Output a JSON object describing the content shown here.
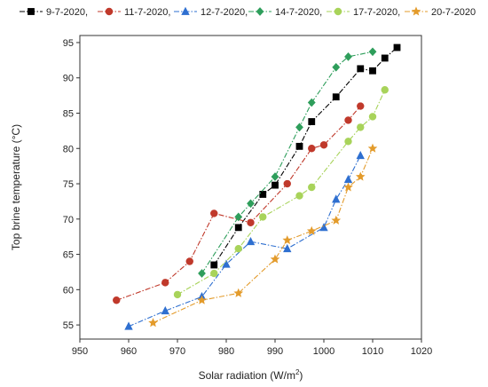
{
  "chart_data": {
    "type": "line",
    "xlabel": "Solar radiation (W/m",
    "xlabel_sup": "2",
    "xlabel_end": ")",
    "ylabel": "Top brine temperature (°C)",
    "xlim": [
      950,
      1020
    ],
    "ylim": [
      53,
      96
    ],
    "xticks": [
      950,
      960,
      970,
      980,
      990,
      1000,
      1010,
      1020
    ],
    "yticks": [
      55,
      60,
      65,
      70,
      75,
      80,
      85,
      90,
      95
    ],
    "legend_position": "top",
    "series": [
      {
        "name": "9-7-2020,",
        "color": "#000000",
        "marker": "square",
        "dash": "dashdot",
        "points": [
          [
            977.5,
            63.5
          ],
          [
            982.5,
            68.8
          ],
          [
            987.5,
            73.5
          ],
          [
            990,
            74.8
          ],
          [
            995,
            80.3
          ],
          [
            997.5,
            83.8
          ],
          [
            1002.5,
            87.3
          ],
          [
            1007.5,
            91.3
          ],
          [
            1010,
            91.0
          ],
          [
            1012.5,
            92.8
          ],
          [
            1015,
            94.3
          ]
        ]
      },
      {
        "name": "11-7-2020,",
        "color": "#c0392b",
        "marker": "circle",
        "dash": "dashdot",
        "points": [
          [
            957.5,
            58.5
          ],
          [
            967.5,
            61.0
          ],
          [
            972.5,
            64.0
          ],
          [
            977.5,
            70.8
          ],
          [
            985,
            69.5
          ],
          [
            992.5,
            75.0
          ],
          [
            997.5,
            80.0
          ],
          [
            1000,
            80.5
          ],
          [
            1005,
            84.0
          ],
          [
            1007.5,
            86.0
          ]
        ]
      },
      {
        "name": "12-7-2020,",
        "color": "#2e6fd0",
        "marker": "triangle",
        "dash": "dashdot",
        "points": [
          [
            960,
            54.8
          ],
          [
            967.5,
            57.0
          ],
          [
            975,
            59.0
          ],
          [
            980,
            63.6
          ],
          [
            985,
            66.8
          ],
          [
            992.5,
            65.8
          ],
          [
            1000,
            68.8
          ],
          [
            1002.5,
            72.8
          ],
          [
            1005,
            75.6
          ],
          [
            1007.5,
            79.0
          ]
        ]
      },
      {
        "name": "14-7-2020,",
        "color": "#2e9e5b",
        "marker": "diamond",
        "dash": "dashdot",
        "points": [
          [
            975,
            62.3
          ],
          [
            982.5,
            70.3
          ],
          [
            985,
            72.2
          ],
          [
            990,
            76.0
          ],
          [
            995,
            83.0
          ],
          [
            997.5,
            86.5
          ],
          [
            1002.5,
            91.5
          ],
          [
            1005,
            93.0
          ],
          [
            1010,
            93.7
          ]
        ]
      },
      {
        "name": "17-7-2020,",
        "color": "#a8d35a",
        "marker": "circle",
        "dash": "dashdot",
        "points": [
          [
            970,
            59.3
          ],
          [
            977.5,
            62.3
          ],
          [
            982.5,
            65.8
          ],
          [
            987.5,
            70.3
          ],
          [
            995,
            73.3
          ],
          [
            997.5,
            74.5
          ],
          [
            1005,
            81.0
          ],
          [
            1007.5,
            83.0
          ],
          [
            1010,
            84.5
          ],
          [
            1012.5,
            88.3
          ]
        ]
      },
      {
        "name": "20-7-2020",
        "color": "#e39b2b",
        "marker": "star",
        "dash": "dashdot",
        "points": [
          [
            965,
            55.3
          ],
          [
            975,
            58.5
          ],
          [
            982.5,
            59.5
          ],
          [
            990,
            64.3
          ],
          [
            992.5,
            67.0
          ],
          [
            997.5,
            68.3
          ],
          [
            1002.5,
            69.8
          ],
          [
            1005,
            74.5
          ],
          [
            1007.5,
            76.0
          ],
          [
            1010,
            80.0
          ]
        ]
      }
    ]
  }
}
